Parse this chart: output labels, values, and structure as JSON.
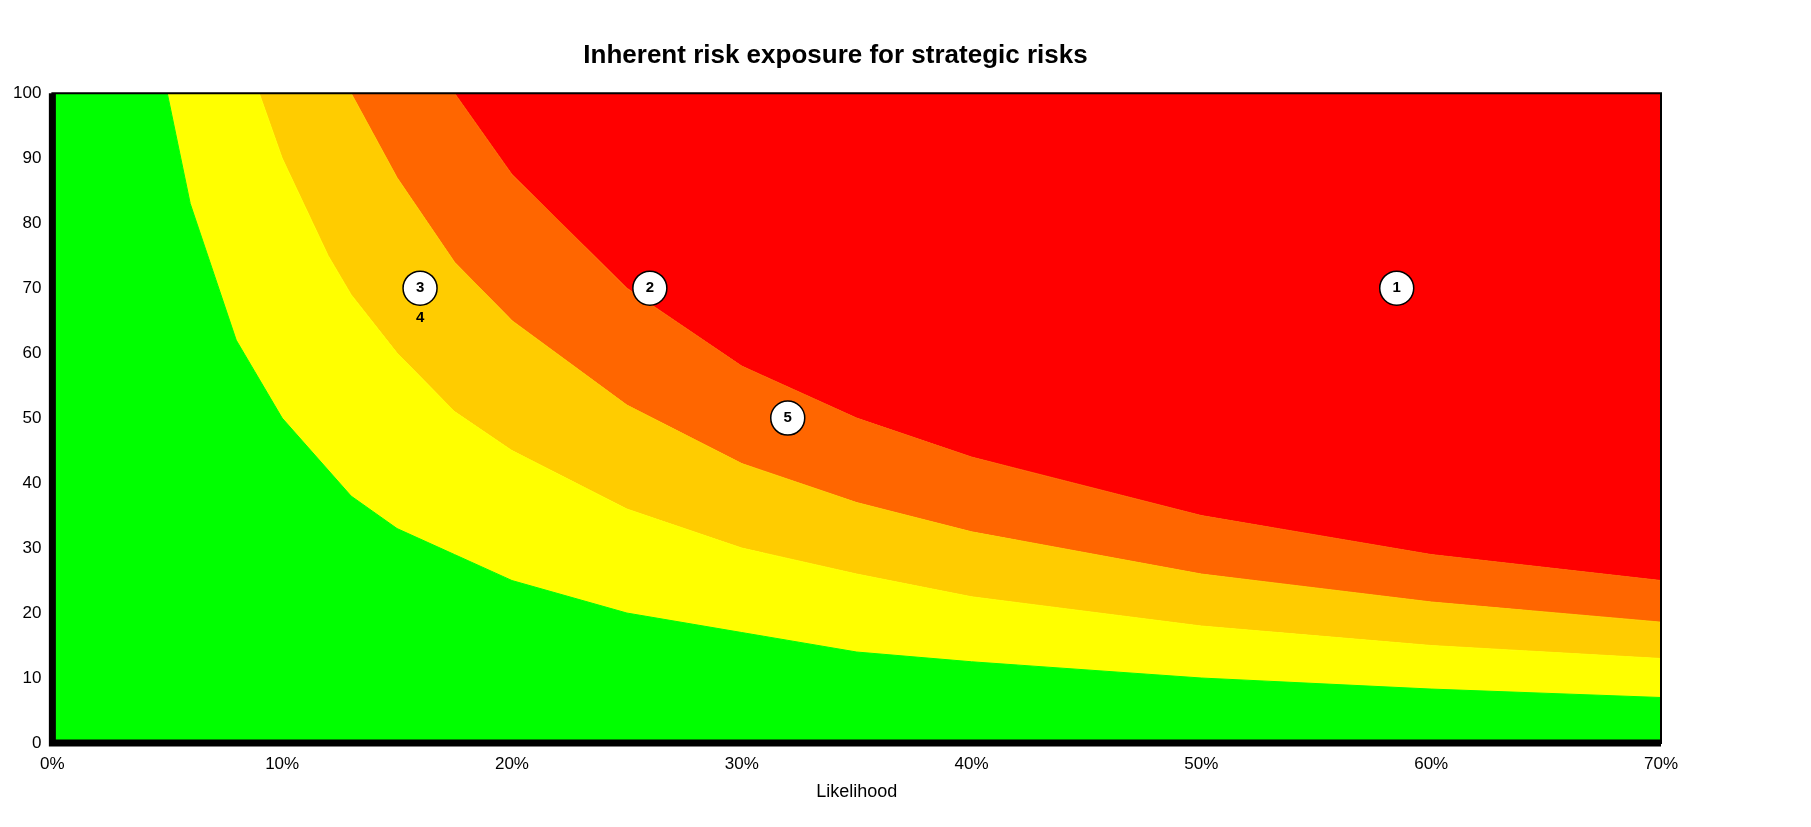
{
  "chart_data": {
    "type": "area",
    "stacked": true,
    "title": "Inherent risk exposure for strategic risks",
    "xlabel": "Likelihood",
    "xlim": [
      0,
      70
    ],
    "xticks": [
      {
        "value": 0,
        "label": "0%"
      },
      {
        "value": 10,
        "label": "10%"
      },
      {
        "value": 20,
        "label": "20%"
      },
      {
        "value": 30,
        "label": "30%"
      },
      {
        "value": 40,
        "label": "40%"
      },
      {
        "value": 50,
        "label": "50%"
      },
      {
        "value": 60,
        "label": "60%"
      },
      {
        "value": 70,
        "label": "70%"
      }
    ],
    "ylim": [
      0,
      100
    ],
    "yticks": [
      0,
      10,
      20,
      30,
      40,
      50,
      60,
      70,
      80,
      90,
      100
    ],
    "grid": false,
    "legend": false,
    "x": [
      0,
      5,
      6,
      8,
      9,
      10,
      12,
      13,
      15,
      17.5,
      20,
      25,
      30,
      35,
      40,
      50,
      60,
      70
    ],
    "series": [
      {
        "color": "#00ff00",
        "values": [
          100,
          100,
          83,
          62,
          56,
          50,
          42,
          38,
          33,
          29,
          25,
          20,
          17,
          14,
          12.5,
          10,
          8.3,
          7
        ]
      },
      {
        "color": "#ffff00",
        "values": [
          0,
          0,
          17,
          38,
          44,
          40,
          33,
          31,
          27,
          22,
          20,
          16,
          13,
          12,
          10,
          8,
          6.7,
          6
        ]
      },
      {
        "color": "#ffcc00",
        "values": [
          0,
          0,
          0,
          0,
          0,
          10,
          25,
          31,
          27,
          23,
          20,
          16,
          13,
          11,
          10,
          8,
          6.7,
          5.6
        ]
      },
      {
        "color": "#ff6600",
        "values": [
          0,
          0,
          0,
          0,
          0,
          0,
          0,
          0,
          13,
          26,
          22.5,
          18,
          15,
          13,
          11.5,
          9,
          7.3,
          6.4
        ]
      },
      {
        "color": "#ff0000",
        "values": [
          0,
          0,
          0,
          0,
          0,
          0,
          0,
          0,
          0,
          0,
          12.5,
          30,
          42,
          50,
          56,
          65,
          71,
          75
        ]
      },
      {
        "type": "scatter",
        "color": "#ffffff",
        "marker": "circle",
        "x": [
          58.5,
          26,
          16,
          32
        ],
        "values": [
          70,
          70,
          70,
          50
        ]
      }
    ],
    "annotations": [
      {
        "text": "1",
        "x": 58.5,
        "y": 70
      },
      {
        "text": "2",
        "x": 26,
        "y": 70
      },
      {
        "text": "3",
        "x": 16,
        "y": 70
      },
      {
        "text": "4",
        "x": 16,
        "y": 70
      },
      {
        "text": "5",
        "x": 32,
        "y": 50
      }
    ]
  }
}
